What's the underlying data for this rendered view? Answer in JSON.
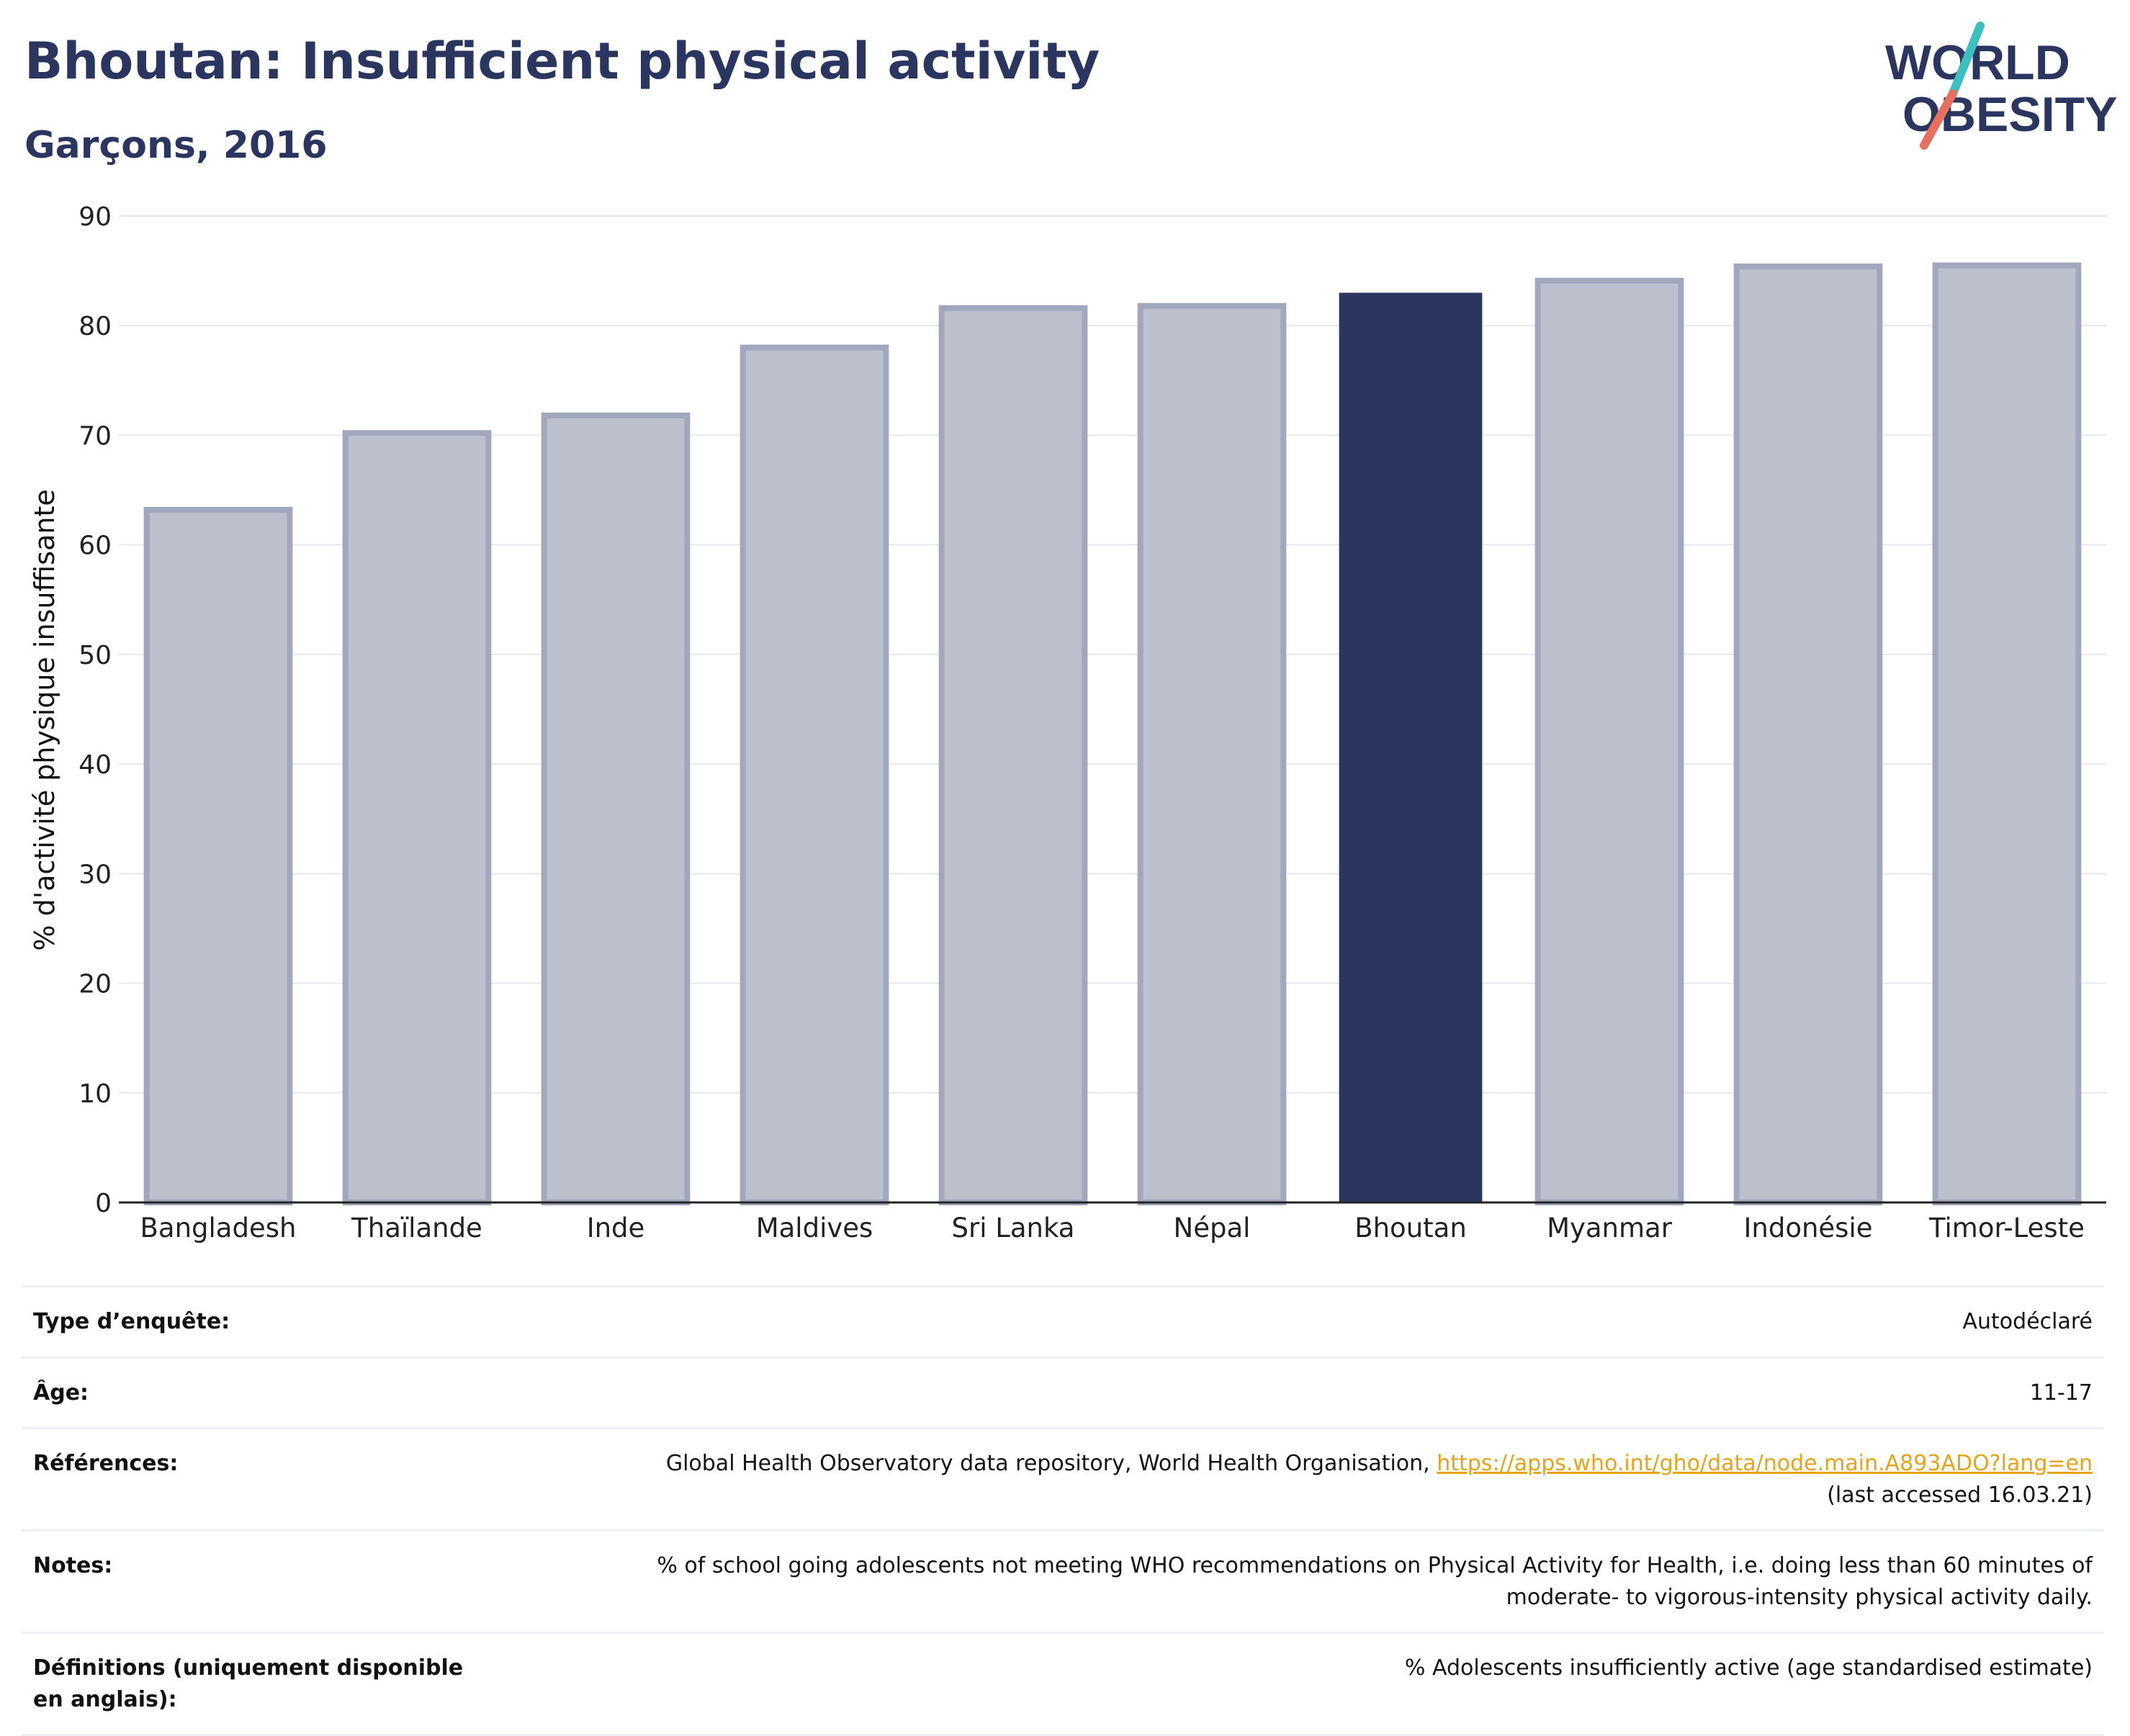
{
  "header": {
    "title": "Bhoutan: Insufficient physical activity",
    "subtitle": "Garçons, 2016"
  },
  "logo": {
    "line1": "WORLD",
    "line2": "OBESITY"
  },
  "colors": {
    "highlight_bar": "#2b3660",
    "other_bar_fill": "#bcc0cd",
    "other_bar_stroke": "#a1a7bc",
    "grid": "#e6e8ee",
    "title": "#2b3660",
    "logo_teal": "#3bbfc0",
    "logo_coral": "#e8705e",
    "link": "#e8a317"
  },
  "chart_data": {
    "type": "bar",
    "title": "Bhoutan: Insufficient physical activity",
    "subtitle": "Garçons, 2016",
    "xlabel": "",
    "ylabel": "% d'activité physique insuffisante",
    "ylim": [
      0,
      90
    ],
    "yticks": [
      0,
      10,
      20,
      30,
      40,
      50,
      60,
      70,
      80,
      90
    ],
    "grid": true,
    "highlight": "Bhoutan",
    "categories": [
      "Bangladesh",
      "Thaïlande",
      "Inde",
      "Maldives",
      "Sri Lanka",
      "Népal",
      "Bhoutan",
      "Myanmar",
      "Indonésie",
      "Timor-Leste"
    ],
    "values": [
      63.2,
      70.2,
      71.8,
      78.0,
      81.6,
      81.8,
      83.0,
      84.1,
      85.4,
      85.5
    ]
  },
  "meta": {
    "survey_label": "Type d’enquête:",
    "survey_value": "Autodéclaré",
    "age_label": "Âge:",
    "age_value": "11-17",
    "refs_label": "Références:",
    "refs_text": "Global Health Observatory data repository, World Health Organisation,",
    "refs_link": "https://apps.who.int/gho/data/node.main.A893ADO?lang=en",
    "refs_accessed": "(last accessed 16.03.21)",
    "notes_label": "Notes:",
    "notes_line1": "% of school going adolescents not meeting WHO recommendations on Physical Activity for Health, i.e. doing less than 60 minutes of",
    "notes_line2": "moderate- to vigorous-intensity physical activity daily.",
    "defs_label": "Définitions (uniquement disponible en anglais):",
    "defs_value": "% Adolescents insufficiently active (age standardised estimate)"
  }
}
